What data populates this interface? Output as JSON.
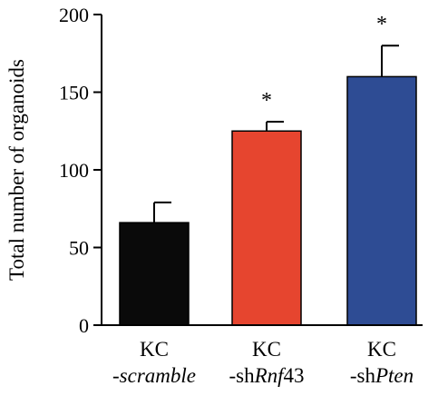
{
  "chart_data": {
    "type": "bar",
    "ylabel": "Total number of organoids",
    "ylim": [
      0,
      200
    ],
    "yticks": [
      0,
      50,
      100,
      150,
      200
    ],
    "categories": [
      {
        "line1": "KC",
        "line2_parts": [
          {
            "text": "-scramble",
            "italic": true
          }
        ]
      },
      {
        "line1": "KC",
        "line2_parts": [
          {
            "text": "-sh",
            "italic": false
          },
          {
            "text": "Rnf",
            "italic": true
          },
          {
            "text": "43",
            "italic": false
          }
        ]
      },
      {
        "line1": "KC",
        "line2_parts": [
          {
            "text": "-sh",
            "italic": false
          },
          {
            "text": "Pten",
            "italic": true
          }
        ]
      }
    ],
    "values": [
      66,
      125,
      160
    ],
    "errors": [
      13,
      6,
      20
    ],
    "significance": [
      "",
      "*",
      "*"
    ],
    "colors": [
      "#0a0a0a",
      "#e6452f",
      "#2e4c94"
    ]
  }
}
